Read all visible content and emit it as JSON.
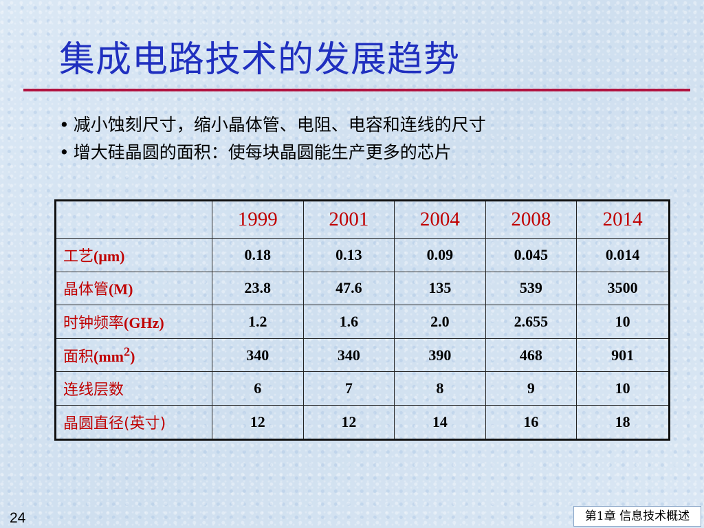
{
  "slide": {
    "title": "集成电路技术的发展趋势",
    "bullets": [
      "减小蚀刻尺寸，缩小晶体管、电阻、电容和连线的尺寸",
      "增大硅晶圆的面积：使每块晶圆能生产更多的芯片"
    ],
    "bullet_glyph": "•",
    "page_number": "24",
    "chapter": "第1章 信息技术概述"
  },
  "table": {
    "columns": [
      "1999",
      "2001",
      "2004",
      "2008",
      "2014"
    ],
    "rows": [
      {
        "label_zh": "工艺",
        "label_unit": "(μm)",
        "values": [
          "0.18",
          "0.13",
          "0.09",
          "0.045",
          "0.014"
        ]
      },
      {
        "label_zh": "晶体管",
        "label_unit": "(M)",
        "values": [
          "23.8",
          "47.6",
          "135",
          "539",
          "3500"
        ]
      },
      {
        "label_zh": "时钟频率",
        "label_unit": "(GHz)",
        "values": [
          "1.2",
          "1.6",
          "2.0",
          "2.655",
          "10"
        ]
      },
      {
        "label_zh": "面积",
        "label_unit": "(mm",
        "label_sup": "2",
        "label_close": ")",
        "values": [
          "340",
          "340",
          "390",
          "468",
          "901"
        ]
      },
      {
        "label_zh": "连线层数",
        "label_unit": "",
        "values": [
          "6",
          "7",
          "8",
          "9",
          "10"
        ]
      },
      {
        "label_zh": "晶圆直径(英寸)",
        "label_unit": "",
        "values": [
          "12",
          "12",
          "14",
          "16",
          "18"
        ]
      }
    ]
  },
  "colors": {
    "title": "#1f2fbf",
    "rule": "#b0123f",
    "header_text": "#c00000",
    "row_label_text": "#c00000",
    "background": "#d6e4f2"
  }
}
